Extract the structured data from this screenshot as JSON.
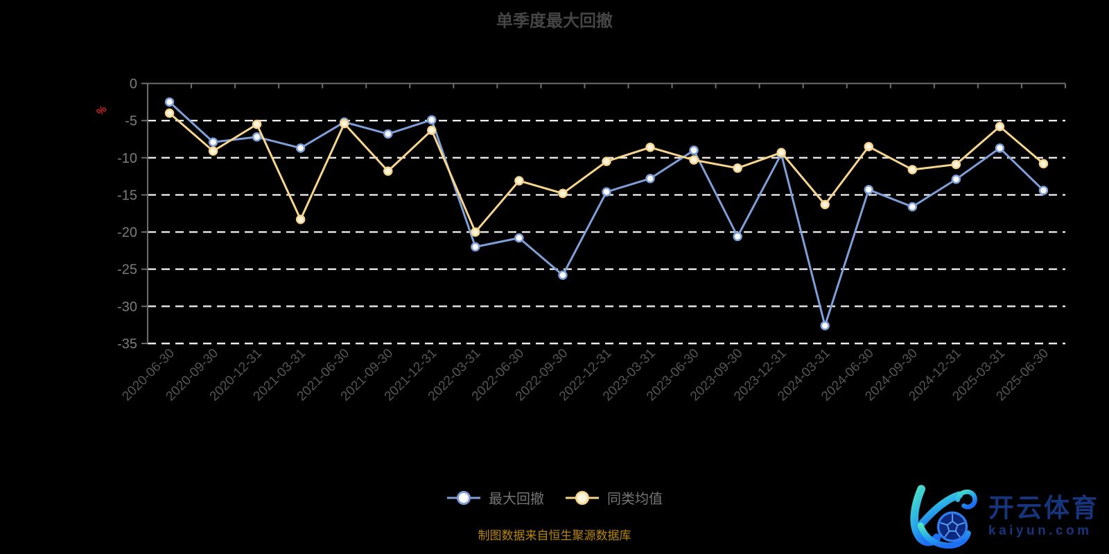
{
  "title": "单季度最大回撤",
  "footer": {
    "text": "制图数据来自恒生聚源数据库",
    "color": "#b8860b"
  },
  "legend": {
    "items": [
      {
        "label": "最大回撤",
        "color": "#7e9fd8",
        "marker_fill": "#ffffff"
      },
      {
        "label": "同类均值",
        "color": "#f8d58e",
        "marker_fill": "#fdf4dd"
      }
    ]
  },
  "watermark": {
    "brand": "开云体育",
    "domain": "kaiyun.com",
    "color": "#16357d"
  },
  "colors": {
    "background": "#000000",
    "title": "#454545",
    "axis": "#6e6e6e",
    "grid": "#ebebeb",
    "y_label": "#7b7b7b",
    "x_label": "#555555",
    "unit_label": "#d42323",
    "legend_text": "#757575"
  },
  "chart_data": {
    "type": "line",
    "title": "单季度最大回撤",
    "ylabel": "%",
    "ylim": [
      -35,
      0
    ],
    "y_ticks": [
      0,
      -5,
      -10,
      -15,
      -20,
      -25,
      -30,
      -35
    ],
    "grid": "horizontal-dashed-white",
    "legend_position": "bottom-center",
    "x_label_rotation": 45,
    "x": [
      "2020-06-30",
      "2020-09-30",
      "2020-12-31",
      "2021-03-31",
      "2021-06-30",
      "2021-09-30",
      "2021-12-31",
      "2022-03-31",
      "2022-06-30",
      "2022-09-30",
      "2022-12-31",
      "2023-03-31",
      "2023-06-30",
      "2023-09-30",
      "2023-12-31",
      "2024-03-31",
      "2024-06-30",
      "2024-09-30",
      "2024-12-31",
      "2025-03-31",
      "2025-06-30"
    ],
    "series": [
      {
        "name": "最大回撤",
        "color": "#7e9fd8",
        "marker_fill": "#ffffff",
        "values": [
          -2.5,
          -7.9,
          -7.2,
          -8.7,
          -5.2,
          -6.8,
          -4.9,
          -22.0,
          -20.8,
          -25.8,
          -14.6,
          -12.8,
          -9.0,
          -20.6,
          -9.5,
          -32.6,
          -14.3,
          -16.6,
          -12.9,
          -8.7,
          -14.4
        ]
      },
      {
        "name": "同类均值",
        "color": "#f8d58e",
        "marker_fill": "#fdf4dd",
        "values": [
          -4.0,
          -9.1,
          -5.5,
          -18.3,
          -5.4,
          -11.8,
          -6.3,
          -20.0,
          -13.1,
          -14.8,
          -10.5,
          -8.6,
          -10.3,
          -11.4,
          -9.3,
          -16.3,
          -8.5,
          -11.6,
          -10.9,
          -5.8,
          -10.8
        ]
      }
    ]
  }
}
